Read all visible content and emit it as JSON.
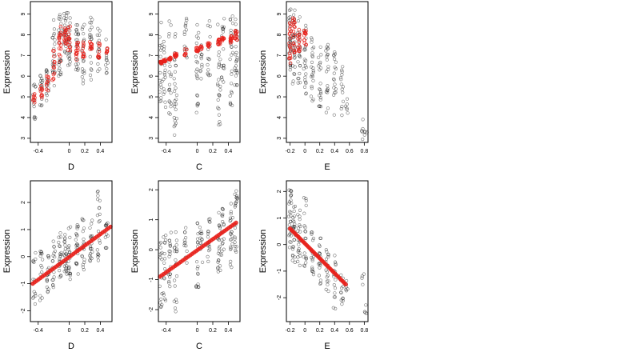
{
  "chart_data": [
    {
      "type": "scatter",
      "xlabel": "D",
      "ylabel": "Expression",
      "xlim": [
        -0.5,
        0.55
      ],
      "ylim": [
        2.8,
        9.6
      ],
      "xticks": [
        -0.4,
        0.0,
        0.2,
        0.4
      ],
      "yticks": [
        3,
        4,
        5,
        6,
        7,
        8,
        9
      ],
      "colors": {
        "observed": "#000000",
        "fitted": "#e8201a"
      },
      "clusters": [
        {
          "x": -0.45,
          "ymin": 3.6,
          "ymax": 5.6,
          "n": 14,
          "fit": [
            4.6,
            5.2
          ]
        },
        {
          "x": -0.36,
          "ymin": 4.5,
          "ymax": 6.2,
          "n": 16,
          "fit": [
            4.9,
            5.6
          ]
        },
        {
          "x": -0.28,
          "ymin": 4.8,
          "ymax": 6.4,
          "n": 16,
          "fit": [
            5.3,
            6.0
          ]
        },
        {
          "x": -0.2,
          "ymin": 5.5,
          "ymax": 8.8,
          "n": 22,
          "fit": [
            5.8,
            7.3
          ]
        },
        {
          "x": -0.12,
          "ymin": 6.0,
          "ymax": 9.0,
          "n": 26,
          "fit": [
            6.6,
            8.4
          ]
        },
        {
          "x": -0.05,
          "ymin": 6.8,
          "ymax": 9.1,
          "n": 24,
          "fit": [
            7.5,
            8.3
          ]
        },
        {
          "x": 0.0,
          "ymin": 6.2,
          "ymax": 9.2,
          "n": 24,
          "fit": [
            7.2,
            8.4
          ]
        },
        {
          "x": 0.1,
          "ymin": 6.0,
          "ymax": 8.6,
          "n": 24,
          "fit": [
            6.7,
            7.8
          ]
        },
        {
          "x": 0.18,
          "ymin": 5.6,
          "ymax": 8.5,
          "n": 20,
          "fit": [
            6.9,
            7.7
          ]
        },
        {
          "x": 0.28,
          "ymin": 5.8,
          "ymax": 9.0,
          "n": 20,
          "fit": [
            7.0,
            7.8
          ]
        },
        {
          "x": 0.38,
          "ymin": 5.8,
          "ymax": 8.5,
          "n": 16,
          "fit": [
            6.8,
            7.6
          ]
        },
        {
          "x": 0.48,
          "ymin": 6.0,
          "ymax": 7.8,
          "n": 12,
          "fit": [
            6.9,
            7.5
          ]
        }
      ]
    },
    {
      "type": "scatter",
      "xlabel": "C",
      "ylabel": "Expression",
      "xlim": [
        -0.5,
        0.55
      ],
      "ylim": [
        2.8,
        9.6
      ],
      "xticks": [
        -0.4,
        0.0,
        0.2,
        0.4
      ],
      "yticks": [
        3,
        4,
        5,
        6,
        7,
        8,
        9
      ],
      "colors": {
        "observed": "#000000",
        "fitted": "#e8201a"
      },
      "clusters": [
        {
          "x": -0.47,
          "ymin": 4.2,
          "ymax": 8.6,
          "n": 18,
          "fit": [
            6.6,
            6.7
          ]
        },
        {
          "x": -0.42,
          "ymin": 4.5,
          "ymax": 8.2,
          "n": 18,
          "fit": [
            6.7,
            6.8
          ]
        },
        {
          "x": -0.35,
          "ymin": 3.8,
          "ymax": 8.7,
          "n": 20,
          "fit": [
            6.8,
            6.9
          ]
        },
        {
          "x": -0.28,
          "ymin": 3.0,
          "ymax": 8.5,
          "n": 26,
          "fit": [
            6.9,
            7.1
          ]
        },
        {
          "x": -0.15,
          "ymin": 6.8,
          "ymax": 8.8,
          "n": 14,
          "fit": [
            7.0,
            7.3
          ]
        },
        {
          "x": 0.0,
          "ymin": 4.2,
          "ymax": 8.6,
          "n": 20,
          "fit": [
            7.2,
            7.4
          ]
        },
        {
          "x": 0.05,
          "ymin": 5.8,
          "ymax": 7.8,
          "n": 12,
          "fit": [
            7.3,
            7.5
          ]
        },
        {
          "x": 0.15,
          "ymin": 5.8,
          "ymax": 8.8,
          "n": 16,
          "fit": [
            7.4,
            7.6
          ]
        },
        {
          "x": 0.28,
          "ymin": 3.5,
          "ymax": 8.8,
          "n": 24,
          "fit": [
            7.5,
            7.8
          ]
        },
        {
          "x": 0.33,
          "ymin": 5.5,
          "ymax": 9.0,
          "n": 18,
          "fit": [
            7.6,
            7.9
          ]
        },
        {
          "x": 0.44,
          "ymin": 4.5,
          "ymax": 9.0,
          "n": 24,
          "fit": [
            7.6,
            8.0
          ]
        },
        {
          "x": 0.5,
          "ymin": 5.5,
          "ymax": 9.3,
          "n": 24,
          "fit": [
            7.7,
            8.2
          ]
        }
      ]
    },
    {
      "type": "scatter",
      "xlabel": "E",
      "ylabel": "Expression",
      "xlim": [
        -0.25,
        0.85
      ],
      "ylim": [
        2.8,
        9.6
      ],
      "xticks": [
        -0.2,
        0.0,
        0.2,
        0.4,
        0.6,
        0.8
      ],
      "yticks": [
        3,
        4,
        5,
        6,
        7,
        8,
        9
      ],
      "colors": {
        "observed": "#000000",
        "fitted": "#e8201a"
      },
      "clusters": [
        {
          "x": -0.2,
          "ymin": 6.0,
          "ymax": 9.3,
          "n": 30,
          "fit": [
            6.6,
            8.6
          ]
        },
        {
          "x": -0.15,
          "ymin": 5.5,
          "ymax": 9.2,
          "n": 30,
          "fit": [
            7.0,
            8.8
          ]
        },
        {
          "x": -0.08,
          "ymin": 5.5,
          "ymax": 9.0,
          "n": 24,
          "fit": [
            7.2,
            8.5
          ]
        },
        {
          "x": 0.0,
          "ymin": 5.0,
          "ymax": 8.8,
          "n": 24,
          "fit": [
            7.4,
            8.2
          ]
        },
        {
          "x": 0.1,
          "ymin": 4.8,
          "ymax": 8.0,
          "n": 22
        },
        {
          "x": 0.2,
          "ymin": 4.5,
          "ymax": 7.8,
          "n": 20
        },
        {
          "x": 0.3,
          "ymin": 4.2,
          "ymax": 7.6,
          "n": 20
        },
        {
          "x": 0.4,
          "ymin": 4.0,
          "ymax": 7.2,
          "n": 18
        },
        {
          "x": 0.5,
          "ymin": 3.8,
          "ymax": 6.5,
          "n": 14
        },
        {
          "x": 0.56,
          "ymin": 4.2,
          "ymax": 5.0,
          "n": 6
        },
        {
          "x": 0.78,
          "ymin": 2.9,
          "ymax": 4.2,
          "n": 5
        },
        {
          "x": 0.82,
          "ymin": 3.0,
          "ymax": 3.9,
          "n": 4
        }
      ]
    },
    {
      "type": "scatter",
      "xlabel": "D",
      "ylabel": "Expression",
      "xlim": [
        -0.5,
        0.55
      ],
      "ylim": [
        -2.4,
        2.8
      ],
      "xticks": [
        -0.4,
        0.0,
        0.2,
        0.4
      ],
      "yticks": [
        -2,
        -1,
        0,
        1,
        2
      ],
      "colors": {
        "observed": "#000000",
        "fitted": "#e8201a"
      },
      "fit_line": {
        "x": [
          -0.47,
          0.53
        ],
        "y": [
          -1.0,
          1.1
        ]
      },
      "clusters": [
        {
          "x": -0.45,
          "ymin": -1.8,
          "ymax": 0.2,
          "n": 14
        },
        {
          "x": -0.36,
          "ymin": -1.7,
          "ymax": 0.2,
          "n": 14
        },
        {
          "x": -0.28,
          "ymin": -1.4,
          "ymax": 0.1,
          "n": 16
        },
        {
          "x": -0.2,
          "ymin": -1.2,
          "ymax": 0.8,
          "n": 18
        },
        {
          "x": -0.12,
          "ymin": -0.8,
          "ymax": 0.9,
          "n": 22
        },
        {
          "x": -0.05,
          "ymin": -0.7,
          "ymax": 0.9,
          "n": 22
        },
        {
          "x": 0.0,
          "ymin": -0.9,
          "ymax": 1.1,
          "n": 22
        },
        {
          "x": 0.1,
          "ymin": -0.7,
          "ymax": 1.3,
          "n": 22
        },
        {
          "x": 0.18,
          "ymin": -0.5,
          "ymax": 1.4,
          "n": 20
        },
        {
          "x": 0.28,
          "ymin": -0.2,
          "ymax": 1.6,
          "n": 20
        },
        {
          "x": 0.38,
          "ymin": -0.2,
          "ymax": 2.5,
          "n": 20
        },
        {
          "x": 0.48,
          "ymin": 0.1,
          "ymax": 1.3,
          "n": 12
        }
      ]
    },
    {
      "type": "scatter",
      "xlabel": "C",
      "ylabel": "Expression",
      "xlim": [
        -0.5,
        0.55
      ],
      "ylim": [
        -2.4,
        2.3
      ],
      "xticks": [
        -0.4,
        0.0,
        0.2,
        0.4
      ],
      "yticks": [
        -2,
        -1,
        0,
        1,
        2
      ],
      "colors": {
        "observed": "#000000",
        "fitted": "#e8201a"
      },
      "fit_line": {
        "x": [
          -0.48,
          0.5
        ],
        "y": [
          -0.9,
          0.9
        ]
      },
      "clusters": [
        {
          "x": -0.47,
          "ymin": -2.1,
          "ymax": 0.3,
          "n": 16
        },
        {
          "x": -0.42,
          "ymin": -1.8,
          "ymax": 0.5,
          "n": 16
        },
        {
          "x": -0.35,
          "ymin": -1.5,
          "ymax": 0.6,
          "n": 18
        },
        {
          "x": -0.28,
          "ymin": -2.1,
          "ymax": 0.7,
          "n": 22
        },
        {
          "x": -0.15,
          "ymin": -0.5,
          "ymax": 0.9,
          "n": 12
        },
        {
          "x": 0.0,
          "ymin": -1.3,
          "ymax": 1.0,
          "n": 18
        },
        {
          "x": 0.05,
          "ymin": -0.6,
          "ymax": 0.9,
          "n": 12
        },
        {
          "x": 0.15,
          "ymin": -0.4,
          "ymax": 1.2,
          "n": 16
        },
        {
          "x": 0.28,
          "ymin": -0.8,
          "ymax": 1.3,
          "n": 22
        },
        {
          "x": 0.33,
          "ymin": -0.3,
          "ymax": 1.5,
          "n": 18
        },
        {
          "x": 0.44,
          "ymin": -0.6,
          "ymax": 1.6,
          "n": 22
        },
        {
          "x": 0.5,
          "ymin": -0.1,
          "ymax": 2.1,
          "n": 22
        }
      ]
    },
    {
      "type": "scatter",
      "xlabel": "E",
      "ylabel": "Expression",
      "xlim": [
        -0.25,
        0.85
      ],
      "ylim": [
        -2.9,
        2.4
      ],
      "xticks": [
        -0.2,
        0.0,
        0.2,
        0.4,
        0.6,
        0.8
      ],
      "yticks": [
        -2,
        -1,
        0,
        1,
        2
      ],
      "colors": {
        "observed": "#000000",
        "fitted": "#e8201a"
      },
      "fit_line": {
        "x": [
          -0.2,
          0.55
        ],
        "y": [
          0.6,
          -1.5
        ]
      },
      "clusters": [
        {
          "x": -0.2,
          "ymin": -0.4,
          "ymax": 2.1,
          "n": 28
        },
        {
          "x": -0.15,
          "ymin": -0.9,
          "ymax": 1.7,
          "n": 26
        },
        {
          "x": -0.08,
          "ymin": -1.0,
          "ymax": 1.3,
          "n": 22
        },
        {
          "x": 0.0,
          "ymin": -0.9,
          "ymax": 2.0,
          "n": 20
        },
        {
          "x": 0.1,
          "ymin": -1.2,
          "ymax": 0.6,
          "n": 18
        },
        {
          "x": 0.2,
          "ymin": -1.5,
          "ymax": 0.4,
          "n": 18
        },
        {
          "x": 0.3,
          "ymin": -1.8,
          "ymax": 0.0,
          "n": 18
        },
        {
          "x": 0.4,
          "ymin": -2.6,
          "ymax": -0.4,
          "n": 16
        },
        {
          "x": 0.5,
          "ymin": -2.4,
          "ymax": -0.8,
          "n": 12
        },
        {
          "x": 0.56,
          "ymin": -1.9,
          "ymax": -1.2,
          "n": 6
        },
        {
          "x": 0.78,
          "ymin": -1.6,
          "ymax": -1.0,
          "n": 4
        },
        {
          "x": 0.82,
          "ymin": -2.6,
          "ymax": -2.2,
          "n": 4
        }
      ]
    }
  ]
}
